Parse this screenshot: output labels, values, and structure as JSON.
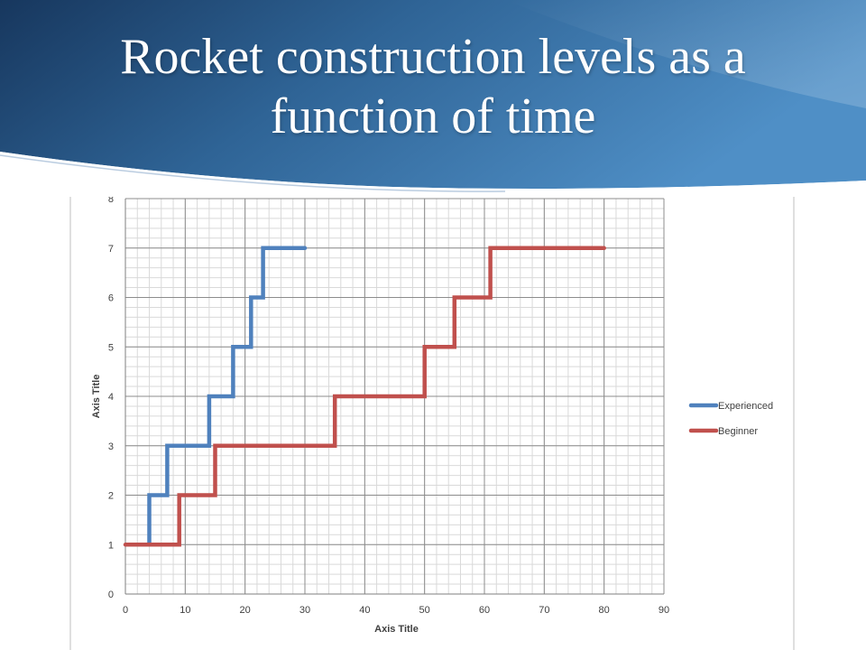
{
  "slide": {
    "title_line1": "Rocket construction levels as a",
    "title_line2": "function of time",
    "header_colors": {
      "dark": "#17375E",
      "mid": "#2F6496",
      "light": "#4F8FC6"
    }
  },
  "chart_data": {
    "type": "line",
    "xlabel": "Axis Title",
    "ylabel": "Axis Title",
    "xlim": [
      0,
      90
    ],
    "ylim": [
      0,
      8
    ],
    "xticks": [
      0,
      10,
      20,
      30,
      40,
      50,
      60,
      70,
      80,
      90
    ],
    "yticks": [
      0,
      1,
      2,
      3,
      4,
      5,
      6,
      7,
      8
    ],
    "grid": true,
    "minor_grid": true,
    "legend_position": "right",
    "series": [
      {
        "name": "Experienced",
        "color": "#4F81BD",
        "x": [
          4,
          4,
          7,
          7,
          14,
          14,
          18,
          18,
          21,
          21,
          23,
          23,
          30
        ],
        "y": [
          1,
          2,
          2,
          3,
          3,
          4,
          4,
          5,
          5,
          6,
          6,
          7,
          7
        ]
      },
      {
        "name": "Beginner",
        "color": "#C0504D",
        "x": [
          0,
          9,
          9,
          15,
          15,
          35,
          35,
          50,
          50,
          55,
          55,
          61,
          61,
          80
        ],
        "y": [
          1,
          1,
          2,
          2,
          3,
          3,
          4,
          4,
          5,
          5,
          6,
          6,
          7,
          7
        ]
      }
    ]
  }
}
